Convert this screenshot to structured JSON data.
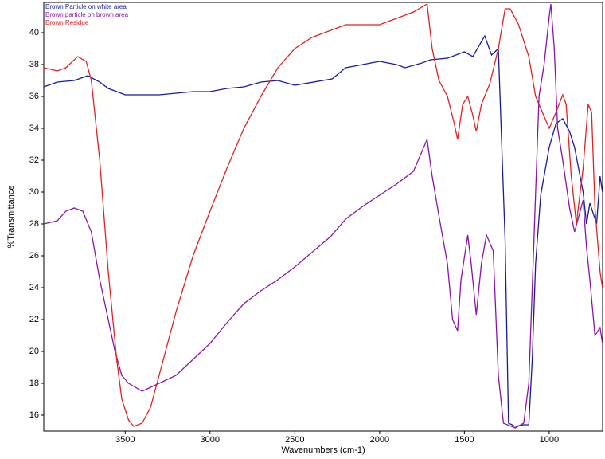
{
  "chart_data": {
    "type": "line",
    "xlabel": "Wavenumbers (cm-1)",
    "ylabel": "%Transmittance",
    "xlim": [
      3980,
      685
    ],
    "ylim": [
      15,
      41.9
    ],
    "xticks": [
      3500,
      3000,
      2500,
      2000,
      1500,
      1000
    ],
    "yticks": [
      16,
      18,
      20,
      22,
      24,
      26,
      28,
      30,
      32,
      34,
      36,
      38,
      40
    ],
    "legend": "top-left",
    "series": [
      {
        "name": "Brown Particle on white area",
        "color": "#1a1aa0",
        "x": [
          3980,
          3900,
          3800,
          3720,
          3650,
          3600,
          3500,
          3400,
          3300,
          3200,
          3100,
          3000,
          2900,
          2800,
          2700,
          2600,
          2500,
          2280,
          2200,
          2100,
          2000,
          1900,
          1850,
          1750,
          1700,
          1600,
          1500,
          1450,
          1380,
          1340,
          1300,
          1260,
          1240,
          1200,
          1150,
          1120,
          1100,
          1080,
          1050,
          1000,
          960,
          920,
          880,
          850,
          800,
          780,
          760,
          720,
          700,
          686
        ],
        "values": [
          36.6,
          36.9,
          37.0,
          37.3,
          36.9,
          36.5,
          36.1,
          36.1,
          36.1,
          36.2,
          36.3,
          36.3,
          36.5,
          36.6,
          36.9,
          37.0,
          36.7,
          37.1,
          37.8,
          38.0,
          38.2,
          38.0,
          37.8,
          38.1,
          38.3,
          38.4,
          38.8,
          38.5,
          39.8,
          38.6,
          39.0,
          27.0,
          15.5,
          15.3,
          15.4,
          15.4,
          19.5,
          25.5,
          29.8,
          32.8,
          34.3,
          34.6,
          33.8,
          32.8,
          30.0,
          28.0,
          29.3,
          28.0,
          31.0,
          30.0
        ]
      },
      {
        "name": "Brown particle on brown area",
        "color": "#8a14a8",
        "x": [
          3980,
          3900,
          3850,
          3800,
          3750,
          3700,
          3650,
          3600,
          3560,
          3520,
          3480,
          3400,
          3300,
          3200,
          3100,
          3000,
          2900,
          2800,
          2700,
          2600,
          2500,
          2290,
          2200,
          2100,
          2000,
          1900,
          1800,
          1720,
          1690,
          1650,
          1600,
          1570,
          1540,
          1520,
          1480,
          1460,
          1430,
          1400,
          1370,
          1330,
          1300,
          1270,
          1200,
          1150,
          1120,
          1100,
          1060,
          1030,
          1000,
          990,
          970,
          950,
          920,
          880,
          850,
          800,
          780,
          760,
          730,
          700,
          686
        ],
        "values": [
          28.0,
          28.2,
          28.8,
          29.0,
          28.8,
          27.5,
          24.5,
          22.0,
          20.0,
          18.5,
          18.0,
          17.5,
          18.0,
          18.5,
          19.5,
          20.5,
          21.8,
          23.0,
          23.8,
          24.5,
          25.3,
          27.2,
          28.3,
          29.1,
          29.8,
          30.5,
          31.3,
          33.3,
          31.0,
          28.5,
          25.5,
          22.0,
          21.3,
          24.5,
          27.3,
          25.5,
          22.3,
          25.5,
          27.3,
          26.3,
          18.5,
          15.5,
          15.2,
          15.5,
          18.0,
          24.0,
          36.0,
          38.0,
          41.0,
          41.8,
          39.0,
          34.0,
          32.0,
          29.0,
          27.5,
          29.5,
          26.5,
          24.5,
          21.0,
          21.5,
          20.5
        ]
      },
      {
        "name": "Brown Residue",
        "color": "#e02222",
        "x": [
          3980,
          3900,
          3850,
          3780,
          3730,
          3700,
          3650,
          3600,
          3550,
          3520,
          3480,
          3450,
          3400,
          3350,
          3300,
          3200,
          3100,
          3000,
          2900,
          2800,
          2700,
          2600,
          2500,
          2400,
          2300,
          2200,
          2100,
          2000,
          1900,
          1800,
          1720,
          1690,
          1650,
          1600,
          1560,
          1540,
          1510,
          1480,
          1450,
          1430,
          1400,
          1350,
          1300,
          1260,
          1230,
          1180,
          1120,
          1080,
          1040,
          1000,
          960,
          920,
          900,
          870,
          840,
          800,
          770,
          750,
          730,
          700,
          686
        ],
        "values": [
          37.8,
          37.6,
          37.8,
          38.5,
          38.2,
          37.0,
          32.0,
          25.0,
          19.5,
          17.0,
          15.7,
          15.3,
          15.5,
          16.5,
          18.5,
          22.5,
          26.0,
          28.8,
          31.5,
          34.0,
          36.0,
          37.8,
          39.0,
          39.7,
          40.1,
          40.5,
          40.5,
          40.5,
          40.9,
          41.3,
          41.8,
          39.0,
          37.0,
          36.0,
          34.3,
          33.3,
          35.5,
          36.0,
          34.8,
          33.8,
          35.5,
          36.8,
          39.0,
          41.5,
          41.5,
          40.5,
          38.5,
          36.0,
          35.0,
          34.0,
          35.0,
          36.1,
          35.5,
          31.0,
          28.0,
          31.5,
          35.5,
          35.0,
          29.0,
          25.0,
          24.0
        ]
      }
    ]
  }
}
